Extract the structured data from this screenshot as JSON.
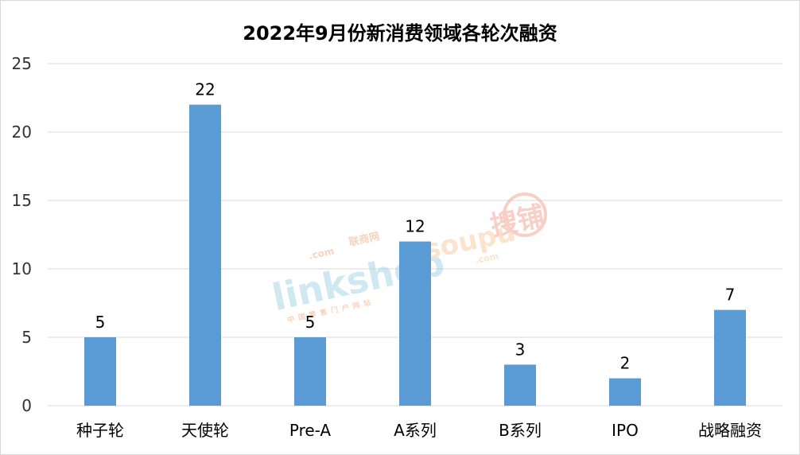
{
  "chart_data": {
    "type": "bar",
    "title": "2022年9月份新消费领域各轮次融资",
    "categories": [
      "种子轮",
      "天使轮",
      "Pre-A",
      "A系列",
      "B系列",
      "IPO",
      "战略融资"
    ],
    "values": [
      5,
      22,
      5,
      12,
      3,
      2,
      7
    ],
    "ylim": [
      0,
      25
    ],
    "yticks": [
      0,
      5,
      10,
      15,
      20,
      25
    ],
    "grid": true,
    "legend": "none",
    "bar_color": "#5b9bd5",
    "data_labels": true
  },
  "watermark": {
    "left_brand": "linkshop",
    "left_sub": ".com",
    "left_cn": "联商网",
    "left_tagline": "中国零售门户网站",
    "right_brand": "soupu",
    "right_sub": ".com",
    "right_cn": "搜铺"
  }
}
